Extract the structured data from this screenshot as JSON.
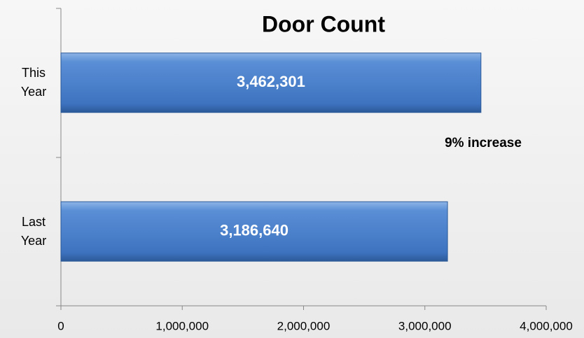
{
  "chart_data": {
    "type": "barh",
    "title": "Door Count",
    "categories": [
      "This Year",
      "Last Year"
    ],
    "values": [
      3462301,
      3186640
    ],
    "value_labels": [
      "3,462,301",
      "3,186,640"
    ],
    "color": "#4a7fc7",
    "annotation": "9% increase",
    "xlim": [
      0,
      4000000
    ],
    "xticks": [
      0,
      {
        "value": 1000000,
        "label": "1,000,000"
      },
      {
        "value": 2000000,
        "label": "2,000,000"
      },
      {
        "value": 3000000,
        "label": "3,000,000"
      },
      {
        "value": 4000000,
        "label": "4,000,000"
      }
    ],
    "grid": false
  }
}
